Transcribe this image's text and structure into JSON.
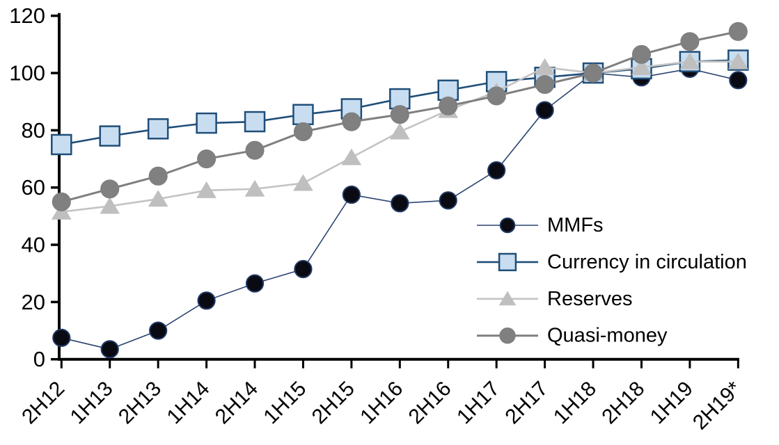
{
  "chart_data": {
    "type": "line",
    "title": "",
    "categories": [
      "2H12",
      "1H13",
      "2H13",
      "1H14",
      "2H14",
      "1H15",
      "2H15",
      "1H16",
      "2H16",
      "1H17",
      "2H17",
      "1H18",
      "2H18",
      "1H19",
      "2H19*"
    ],
    "series": [
      {
        "name": "MMFs",
        "values": [
          7.5,
          3.5,
          10,
          20.5,
          26.5,
          31.5,
          57.5,
          54.5,
          55.5,
          66,
          87,
          100,
          98.5,
          101.5,
          97.5
        ],
        "marker": "circle",
        "marker_fill": "#0a0a12",
        "marker_stroke": "#1f3864",
        "line_color": "#2b4470",
        "line_width": 1.6,
        "marker_radius": 13
      },
      {
        "name": "Currency in circulation",
        "values": [
          75,
          78,
          80.5,
          82.5,
          83,
          85.5,
          87.5,
          91,
          94,
          97,
          98.5,
          100,
          101.5,
          104,
          104.5
        ],
        "marker": "square",
        "marker_fill": "#c9ddf1",
        "marker_stroke": "#1f4e79",
        "line_color": "#1f4e79",
        "line_width": 2.6,
        "marker_radius": 14
      },
      {
        "name": "Reserves",
        "values": [
          51.5,
          53.5,
          56,
          59,
          59.5,
          61.5,
          70.5,
          79.5,
          87,
          93.5,
          102,
          100,
          102,
          104,
          104
        ],
        "marker": "triangle",
        "marker_fill": "#bfbfbf",
        "marker_stroke": "#bfbfbf",
        "line_color": "#c3c3c3",
        "line_width": 2.6,
        "marker_radius": 13.5
      },
      {
        "name": "Quasi-money",
        "values": [
          55,
          59.5,
          64,
          70,
          73,
          79.5,
          83,
          85.5,
          88.5,
          92,
          96,
          100,
          106.5,
          111,
          114.5
        ],
        "marker": "circle",
        "marker_fill": "#808080",
        "marker_stroke": "#7f7f7f",
        "line_color": "#7f7f7f",
        "line_width": 3,
        "marker_radius": 13.5
      }
    ],
    "ylim": [
      0,
      120
    ],
    "ytick_step": 20,
    "ytick_labels": [
      "0",
      "20",
      "40",
      "60",
      "80",
      "100",
      "120"
    ],
    "grid": false,
    "legend_position": "middle-right",
    "legend_labels": [
      "MMFs",
      "Currency in circulation",
      "Reserves",
      "Quasi-money"
    ],
    "axis_color": "#000000"
  }
}
